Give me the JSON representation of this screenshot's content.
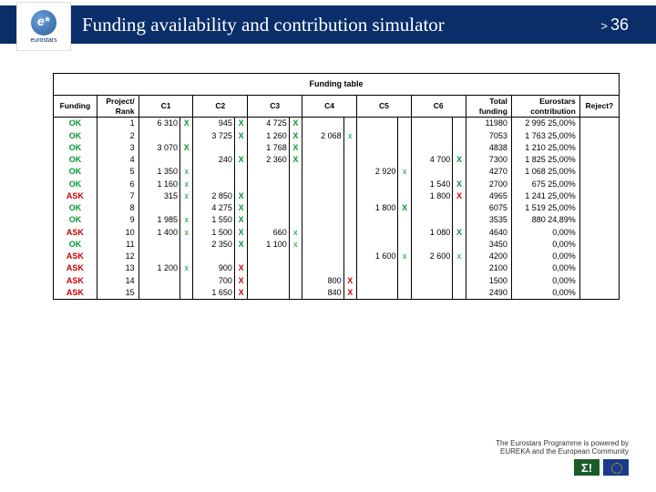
{
  "header": {
    "logo_text": "eurostars",
    "title": "Funding availability and contribution simulator",
    "page_num": "36",
    "page_prefix": ">"
  },
  "table": {
    "super_header": "Funding table",
    "columns": {
      "funding": "Funding",
      "rank": "Project/\nRank",
      "c1": "C1",
      "c2": "C2",
      "c3": "C3",
      "c4": "C4",
      "c5": "C5",
      "c6": "C6",
      "total": "Total\nfunding",
      "contrib": "Eurostars\ncontribution",
      "reject": "Reject?"
    },
    "rows": [
      {
        "funding": "OK",
        "rank": "1",
        "c1": "6 310",
        "x1": "X",
        "c2": "945",
        "x2": "X",
        "c3": "4 725",
        "x3": "X",
        "c4": "",
        "x4": "",
        "c5": "",
        "x5": "",
        "c6": "",
        "x6": "",
        "total": "11980",
        "contrib": "2 995 25,00%"
      },
      {
        "funding": "OK",
        "rank": "2",
        "c1": "",
        "x1": "",
        "c2": "3 725",
        "x2": "X",
        "c3": "1 260",
        "x3": "X",
        "c4": "2 068",
        "x4": "x",
        "c5": "",
        "x5": "",
        "c6": "",
        "x6": "",
        "total": "7053",
        "contrib": "1 763 25,00%"
      },
      {
        "funding": "OK",
        "rank": "3",
        "c1": "3 070",
        "x1": "X",
        "c2": "",
        "x2": "",
        "c3": "1 768",
        "x3": "X",
        "c4": "",
        "x4": "",
        "c5": "",
        "x5": "",
        "c6": "",
        "x6": "",
        "total": "4838",
        "contrib": "1 210 25,00%"
      },
      {
        "funding": "OK",
        "rank": "4",
        "c1": "",
        "x1": "",
        "c2": "240",
        "x2": "X",
        "c3": "2 360",
        "x3": "X",
        "c4": "",
        "x4": "",
        "c5": "",
        "x5": "",
        "c6": "4 700",
        "x6": "X",
        "total": "7300",
        "contrib": "1 825 25,00%"
      },
      {
        "funding": "OK",
        "rank": "5",
        "c1": "1 350",
        "x1": "x",
        "c2": "",
        "x2": "",
        "c3": "",
        "x3": "",
        "c4": "",
        "x4": "",
        "c5": "2 920",
        "x5": "x",
        "c6": "",
        "x6": "",
        "total": "4270",
        "contrib": "1 068 25,00%"
      },
      {
        "funding": "OK",
        "rank": "6",
        "c1": "1 160",
        "x1": "x",
        "c2": "",
        "x2": "",
        "c3": "",
        "x3": "",
        "c4": "",
        "x4": "",
        "c5": "",
        "x5": "",
        "c6": "1 540",
        "x6": "X",
        "total": "2700",
        "contrib": "675 25,00%"
      },
      {
        "funding": "ASK",
        "rank": "7",
        "c1": "315",
        "x1": "x",
        "c2": "2 850",
        "x2": "X",
        "c3": "",
        "x3": "",
        "c4": "",
        "x4": "",
        "c5": "",
        "x5": "",
        "c6": "1 800",
        "x6": "Xr",
        "total": "4965",
        "contrib": "1 241 25,00%"
      },
      {
        "funding": "OK",
        "rank": "8",
        "c1": "",
        "x1": "",
        "c2": "4 275",
        "x2": "X",
        "c3": "",
        "x3": "",
        "c4": "",
        "x4": "",
        "c5": "1 800",
        "x5": "X",
        "c6": "",
        "x6": "",
        "total": "6075",
        "contrib": "1 519 25,00%"
      },
      {
        "funding": "OK",
        "rank": "9",
        "c1": "1 985",
        "x1": "x",
        "c2": "1 550",
        "x2": "X",
        "c3": "",
        "x3": "",
        "c4": "",
        "x4": "",
        "c5": "",
        "x5": "",
        "c6": "",
        "x6": "",
        "total": "3535",
        "contrib": "880 24,89%"
      },
      {
        "funding": "ASK",
        "rank": "10",
        "c1": "1 400",
        "x1": "x",
        "c2": "1 500",
        "x2": "X",
        "c3": "660",
        "x3": "x",
        "c4": "",
        "x4": "",
        "c5": "",
        "x5": "",
        "c6": "1 080",
        "x6": "X",
        "total": "4640",
        "contrib": "0,00%"
      },
      {
        "funding": "OK",
        "rank": "11",
        "c1": "",
        "x1": "",
        "c2": "2 350",
        "x2": "X",
        "c3": "1 100",
        "x3": "x",
        "c4": "",
        "x4": "",
        "c5": "",
        "x5": "",
        "c6": "",
        "x6": "",
        "total": "3450",
        "contrib": "0,00%"
      },
      {
        "funding": "ASK",
        "rank": "12",
        "c1": "",
        "x1": "",
        "c2": "",
        "x2": "",
        "c3": "",
        "x3": "",
        "c4": "",
        "x4": "",
        "c5": "1 600",
        "x5": "x",
        "c6": "2 600",
        "x6": "x",
        "total": "4200",
        "contrib": "0,00%"
      },
      {
        "funding": "ASK",
        "rank": "13",
        "c1": "1 200",
        "x1": "x",
        "c2": "900",
        "x2": "Xr",
        "c3": "",
        "x3": "",
        "c4": "",
        "x4": "",
        "c5": "",
        "x5": "",
        "c6": "",
        "x6": "",
        "total": "2100",
        "contrib": "0,00%"
      },
      {
        "funding": "ASK",
        "rank": "14",
        "c1": "",
        "x1": "",
        "c2": "700",
        "x2": "Xr",
        "c3": "",
        "x3": "",
        "c4": "800",
        "x4": "Xr",
        "c5": "",
        "x5": "",
        "c6": "",
        "x6": "",
        "total": "1500",
        "contrib": "0,00%"
      },
      {
        "funding": "ASK",
        "rank": "15",
        "c1": "",
        "x1": "",
        "c2": "1 650",
        "x2": "Xr",
        "c3": "",
        "x3": "",
        "c4": "840",
        "x4": "Xr",
        "c5": "",
        "x5": "",
        "c6": "",
        "x6": "",
        "total": "2490",
        "contrib": "0,00%"
      }
    ]
  },
  "footer": {
    "line1": "The Eurostars Programme is powered by",
    "line2": "EUREKA and the European Community",
    "sigma": "Σ!"
  },
  "colors": {
    "header_bg": "#0a2e6a",
    "ok": "#009933",
    "ask": "#cc0000"
  }
}
